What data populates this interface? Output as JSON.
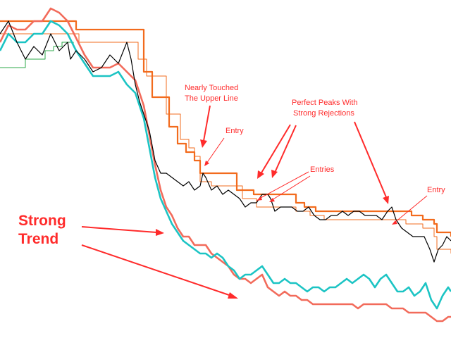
{
  "chart_data": {
    "type": "line",
    "title": "",
    "xlabel": "",
    "ylabel": "",
    "grid": false,
    "legend": "none",
    "colors": {
      "price": "#000000",
      "upper_band_thick": "#f26b1d",
      "upper_band_thin": "#f26b1d",
      "lower_band_cyan": "#1cc4c4",
      "lower_band_salmon": "#f26b5b",
      "lower_band_green": "#2ea84a",
      "annotation": "#ff2b2b"
    },
    "series": [
      {
        "key": "price",
        "x": [
          0,
          12,
          24,
          36,
          48,
          60,
          72,
          84,
          96,
          100,
          108,
          120,
          132,
          144,
          156,
          168,
          180,
          186,
          192,
          198,
          204,
          212,
          220,
          228,
          236,
          244,
          252,
          260,
          268,
          276,
          284,
          288,
          292,
          300,
          308,
          316,
          324,
          332,
          340,
          348,
          356,
          364,
          372,
          380,
          384,
          390,
          398,
          406,
          414,
          422,
          430,
          438,
          446,
          454,
          462,
          470,
          478,
          486,
          494,
          502,
          510,
          518,
          526,
          534,
          542,
          550,
          556,
          562,
          570,
          578,
          586,
          594,
          602,
          610,
          616,
          622,
          628,
          634,
          640
        ],
        "y": [
          58,
          55,
          60,
          64,
          61,
          63,
          58,
          62,
          60,
          64,
          62,
          64,
          67,
          66,
          63,
          65,
          60,
          64,
          70,
          74,
          77,
          81,
          88,
          91,
          91,
          92,
          93,
          94,
          93,
          95,
          94,
          91,
          92,
          95,
          94,
          96,
          95,
          96,
          97,
          99,
          98,
          98,
          96,
          96,
          97,
          100,
          99,
          99,
          99,
          100,
          100,
          99,
          101,
          102,
          102,
          101,
          101,
          100,
          101,
          100,
          100,
          101,
          101,
          101,
          102,
          100,
          99,
          102,
          104,
          105,
          106,
          106,
          106,
          109,
          112,
          109,
          108,
          106,
          107
        ]
      },
      {
        "key": "upper_band_thick",
        "x": [
          0,
          100,
          108,
          200,
          204,
          216,
          240,
          252,
          264,
          276,
          284,
          324,
          336,
          360,
          404,
          420,
          432,
          448,
          576,
          584,
          600,
          616,
          620,
          640
        ],
        "y": [
          55,
          55,
          57,
          57,
          67,
          73,
          80,
          84,
          86,
          88,
          91,
          91,
          95,
          96,
          96,
          98,
          99,
          100,
          100,
          101,
          102,
          103,
          105,
          106
        ]
      },
      {
        "key": "upper_band_thin",
        "x": [
          0,
          100,
          112,
          188,
          196,
          208,
          236,
          256,
          268,
          276,
          284,
          300,
          324,
          344,
          364,
          400,
          420,
          440,
          460,
          480,
          560,
          576,
          600,
          616,
          620,
          640
        ],
        "y": [
          58,
          58,
          60,
          60,
          64,
          68,
          77,
          83,
          85,
          87,
          93,
          94,
          94,
          97,
          99,
          99,
          100,
          101,
          102,
          102,
          102,
          103,
          104,
          106,
          109,
          110
        ]
      },
      {
        "key": "lower_band_cyan",
        "x": [
          0,
          12,
          24,
          36,
          48,
          60,
          72,
          84,
          96,
          108,
          120,
          132,
          144,
          156,
          168,
          180,
          192,
          204,
          212,
          220,
          228,
          236,
          244,
          252,
          260,
          268,
          276,
          284,
          292,
          300,
          308,
          316,
          324,
          332,
          340,
          348,
          356,
          364,
          372,
          380,
          388,
          396,
          404,
          412,
          420,
          428,
          436,
          444,
          452,
          460,
          468,
          476,
          484,
          492,
          500,
          508,
          516,
          524,
          532,
          540,
          548,
          556,
          564,
          572,
          580,
          588,
          596,
          604,
          612,
          620,
          628,
          636,
          640
        ],
        "y": [
          62,
          58,
          60,
          60,
          58,
          58,
          55,
          56,
          58,
          62,
          65,
          68,
          68,
          68,
          67,
          70,
          72,
          78,
          85,
          92,
          97,
          100,
          103,
          105,
          107,
          108,
          109,
          110,
          110,
          111,
          110,
          111,
          113,
          114,
          116,
          115,
          115,
          114,
          113,
          115,
          117,
          117,
          116,
          117,
          117,
          118,
          119,
          118,
          118,
          119,
          118,
          118,
          117,
          116,
          117,
          116,
          115,
          116,
          118,
          116,
          115,
          117,
          119,
          119,
          118,
          120,
          119,
          117,
          121,
          123,
          120,
          118,
          119
        ]
      },
      {
        "key": "lower_band_salmon",
        "x": [
          0,
          12,
          24,
          36,
          48,
          60,
          72,
          84,
          96,
          108,
          120,
          132,
          144,
          156,
          168,
          180,
          192,
          204,
          212,
          220,
          228,
          236,
          244,
          252,
          260,
          268,
          276,
          284,
          292,
          300,
          308,
          316,
          324,
          332,
          340,
          348,
          356,
          364,
          372,
          380,
          388,
          396,
          404,
          412,
          420,
          428,
          436,
          444,
          452,
          460,
          468,
          476,
          484,
          492,
          500,
          508,
          516,
          524,
          532,
          540,
          548,
          556,
          564,
          572,
          580,
          588,
          596,
          604,
          612,
          620,
          628,
          636,
          640
        ],
        "y": [
          60,
          56,
          57,
          57,
          55,
          55,
          52,
          53,
          55,
          59,
          63,
          66,
          66,
          66,
          65,
          67,
          69,
          75,
          82,
          89,
          95,
          99,
          101,
          104,
          106,
          106,
          108,
          108,
          108,
          110,
          111,
          112,
          113,
          115,
          116,
          116,
          117,
          116,
          115,
          118,
          119,
          120,
          119,
          120,
          120,
          121,
          121,
          122,
          122,
          122,
          122,
          122,
          122,
          122,
          122,
          123,
          122,
          122,
          122,
          122,
          122,
          123,
          123,
          123,
          124,
          124,
          124,
          124,
          125,
          126,
          126,
          125,
          125
        ]
      },
      {
        "key": "lower_band_green",
        "x": [
          0,
          20,
          36,
          52,
          64,
          76,
          88,
          100,
          104
        ],
        "y": [
          66,
          66,
          64,
          64,
          62,
          61,
          60,
          60,
          61
        ]
      }
    ],
    "annotations": [
      "Nearly Touched",
      "The Upper Line",
      "Entry",
      "Perfect Peaks With",
      "Strong Rejections",
      "Entries",
      "Entry",
      "Strong",
      "Trend"
    ]
  }
}
